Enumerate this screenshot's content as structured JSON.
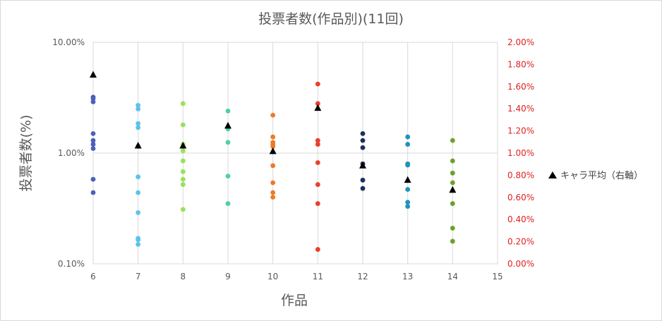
{
  "chart_data": {
    "type": "scatter",
    "title": "投票者数(作品別)(11回)",
    "xlabel": "作品",
    "ylabel": "投票者数(%)",
    "x_ticks": [
      "6",
      "7",
      "8",
      "9",
      "10",
      "11",
      "12",
      "13",
      "14",
      "15"
    ],
    "xlim": [
      6,
      15
    ],
    "y_left": {
      "scale": "log",
      "ylim": [
        0.1,
        10
      ],
      "tick_labels": [
        "10.00%",
        "1.00%",
        "0.10%"
      ],
      "tick_values": [
        10,
        1,
        0.1
      ]
    },
    "y_right": {
      "scale": "linear",
      "ylim": [
        0,
        2
      ],
      "tick_labels": [
        "2.00%",
        "1.80%",
        "1.60%",
        "1.40%",
        "1.20%",
        "1.00%",
        "0.80%",
        "0.60%",
        "0.40%",
        "0.20%",
        "0.00%"
      ],
      "tick_values": [
        2.0,
        1.8,
        1.6,
        1.4,
        1.2,
        1.0,
        0.8,
        0.6,
        0.4,
        0.2,
        0.0
      ],
      "color": "#e02020"
    },
    "grid": true,
    "series": [
      {
        "work": 6,
        "color": "#4b5fbd",
        "values": [
          3.2,
          3.1,
          2.9,
          1.5,
          1.3,
          1.2,
          1.1,
          0.58,
          0.44
        ]
      },
      {
        "work": 7,
        "color": "#5bc3ea",
        "values": [
          2.7,
          2.5,
          1.85,
          1.7,
          1.15,
          0.61,
          0.44,
          0.29,
          0.17,
          0.165,
          0.15
        ]
      },
      {
        "work": 8,
        "color": "#98e15a",
        "values": [
          2.8,
          1.8,
          1.2,
          1.05,
          0.85,
          0.68,
          0.58,
          0.52,
          0.31
        ]
      },
      {
        "work": 9,
        "color": "#4fd0a6",
        "values": [
          2.4,
          1.65,
          1.25,
          0.62,
          0.35
        ]
      },
      {
        "work": 10,
        "color": "#ee7a2a",
        "values": [
          2.2,
          1.4,
          1.25,
          1.2,
          1.15,
          0.77,
          0.54,
          0.44,
          0.4
        ]
      },
      {
        "work": 11,
        "color": "#e8402a",
        "values": [
          4.2,
          2.8,
          1.3,
          1.2,
          0.82,
          0.52,
          0.35,
          0.135
        ]
      },
      {
        "work": 12,
        "color": "#1f2d5c",
        "values": [
          1.5,
          1.3,
          1.12,
          0.8,
          0.57,
          0.48
        ]
      },
      {
        "work": 13,
        "color": "#1e93bd",
        "values": [
          1.4,
          1.2,
          0.8,
          0.78,
          0.47,
          0.36,
          0.33
        ]
      },
      {
        "work": 14,
        "color": "#6aa22a",
        "values": [
          1.3,
          0.85,
          0.66,
          0.54,
          0.35,
          0.21,
          0.16
        ]
      }
    ],
    "right_series": {
      "name": "キャラ平均（右軸）",
      "marker": "triangle",
      "color": "#000000",
      "points": [
        {
          "x": 6,
          "y": 1.71
        },
        {
          "x": 7,
          "y": 1.07
        },
        {
          "x": 8,
          "y": 1.07
        },
        {
          "x": 9,
          "y": 1.25
        },
        {
          "x": 10,
          "y": 1.02
        },
        {
          "x": 11,
          "y": 1.41
        },
        {
          "x": 12,
          "y": 0.89
        },
        {
          "x": 13,
          "y": 0.76
        },
        {
          "x": 14,
          "y": 0.67
        }
      ]
    },
    "legend": {
      "position": "right",
      "entries": [
        "キャラ平均（右軸）"
      ]
    }
  }
}
